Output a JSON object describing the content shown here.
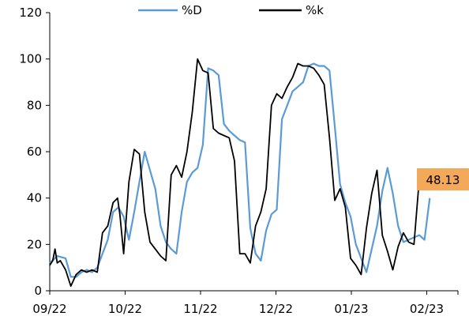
{
  "chart_data": {
    "type": "line",
    "ylim": [
      0,
      120
    ],
    "y_ticks": [
      0,
      20,
      40,
      60,
      80,
      100,
      120
    ],
    "x_range": [
      0,
      6.1
    ],
    "x_tick_labels": [
      "09/22",
      "10/22",
      "11/22",
      "12/22",
      "01/23",
      "02/23"
    ],
    "x_tick_positions": [
      0,
      1,
      2,
      3,
      4,
      5
    ],
    "grid": false,
    "legend_position": "top-center",
    "series": [
      {
        "name": "%D",
        "color": "#5b9bd5",
        "x": [
          0.0,
          0.07,
          0.1,
          0.21,
          0.28,
          0.35,
          0.42,
          0.49,
          0.56,
          0.63,
          0.7,
          0.77,
          0.84,
          0.91,
          0.98,
          1.05,
          1.12,
          1.19,
          1.26,
          1.33,
          1.4,
          1.47,
          1.54,
          1.61,
          1.68,
          1.75,
          1.82,
          1.89,
          1.96,
          2.03,
          2.1,
          2.17,
          2.24,
          2.31,
          2.38,
          2.45,
          2.52,
          2.59,
          2.66,
          2.73,
          2.8,
          2.87,
          2.94,
          3.01,
          3.08,
          3.15,
          3.22,
          3.29,
          3.36,
          3.43,
          3.5,
          3.57,
          3.64,
          3.71,
          3.78,
          3.85,
          3.92,
          3.99,
          4.06,
          4.13,
          4.2,
          4.27,
          4.34,
          4.41,
          4.48,
          4.55,
          4.62,
          4.69,
          4.76,
          4.83,
          4.9,
          4.97,
          5.04,
          5.11,
          5.18,
          5.25,
          5.32,
          5.39,
          5.46,
          5.53
        ],
        "values": [
          12,
          14,
          15,
          14,
          6,
          6,
          8,
          9,
          8,
          10,
          16,
          22,
          34,
          36,
          32,
          22,
          34,
          47,
          60,
          52,
          44,
          28,
          21,
          18,
          16,
          34,
          47,
          51,
          53,
          63,
          96,
          95,
          93,
          72,
          69,
          67,
          65,
          64,
          27,
          16,
          13,
          26,
          33,
          35,
          74,
          80,
          86,
          88,
          90,
          97,
          98,
          97,
          97,
          95,
          71,
          46,
          38,
          32,
          20,
          14,
          8,
          18,
          28,
          43,
          53,
          42,
          28,
          21,
          22,
          23,
          24,
          22,
          40,
          null,
          null,
          null,
          null,
          null,
          null,
          null
        ]
      },
      {
        "name": "%k",
        "color": "#000000",
        "x": [
          0.0,
          0.04,
          0.07,
          0.1,
          0.14,
          0.21,
          0.28,
          0.35,
          0.42,
          0.49,
          0.56,
          0.63,
          0.7,
          0.77,
          0.84,
          0.9,
          0.93,
          0.98,
          1.05,
          1.12,
          1.19,
          1.26,
          1.33,
          1.4,
          1.47,
          1.54,
          1.61,
          1.68,
          1.75,
          1.82,
          1.89,
          1.96,
          2.03,
          2.1,
          2.17,
          2.24,
          2.31,
          2.38,
          2.45,
          2.52,
          2.59,
          2.66,
          2.73,
          2.8,
          2.87,
          2.94,
          3.01,
          3.08,
          3.15,
          3.22,
          3.29,
          3.36,
          3.43,
          3.5,
          3.57,
          3.64,
          3.71,
          3.78,
          3.85,
          3.92,
          3.99,
          4.06,
          4.13,
          4.2,
          4.27,
          4.34,
          4.41,
          4.48,
          4.55,
          4.62,
          4.69,
          4.76,
          4.83,
          4.9,
          4.97,
          5.04,
          5.11,
          5.18,
          5.25,
          5.32,
          5.39,
          5.46,
          5.53
        ],
        "values": [
          11,
          13,
          18,
          12,
          13,
          9,
          2,
          7,
          9,
          8,
          9,
          8,
          25,
          28,
          38,
          40,
          33,
          16,
          47,
          61,
          59,
          34,
          21,
          18,
          15,
          13,
          50,
          54,
          49,
          60,
          77,
          100,
          95,
          94,
          70,
          68,
          67,
          66,
          56,
          16,
          16,
          12,
          28,
          34,
          44,
          80,
          85,
          83,
          88,
          92,
          98,
          97,
          97,
          96,
          93,
          89,
          66,
          39,
          44,
          36,
          14,
          11,
          7,
          27,
          42,
          52,
          24,
          17,
          9,
          19,
          25,
          21,
          20,
          48,
          null,
          null,
          null,
          null,
          null,
          null,
          null,
          null,
          null
        ]
      }
    ],
    "annotation": {
      "text": "48.13",
      "value": 48.13,
      "fill": "#f4a95a"
    }
  }
}
